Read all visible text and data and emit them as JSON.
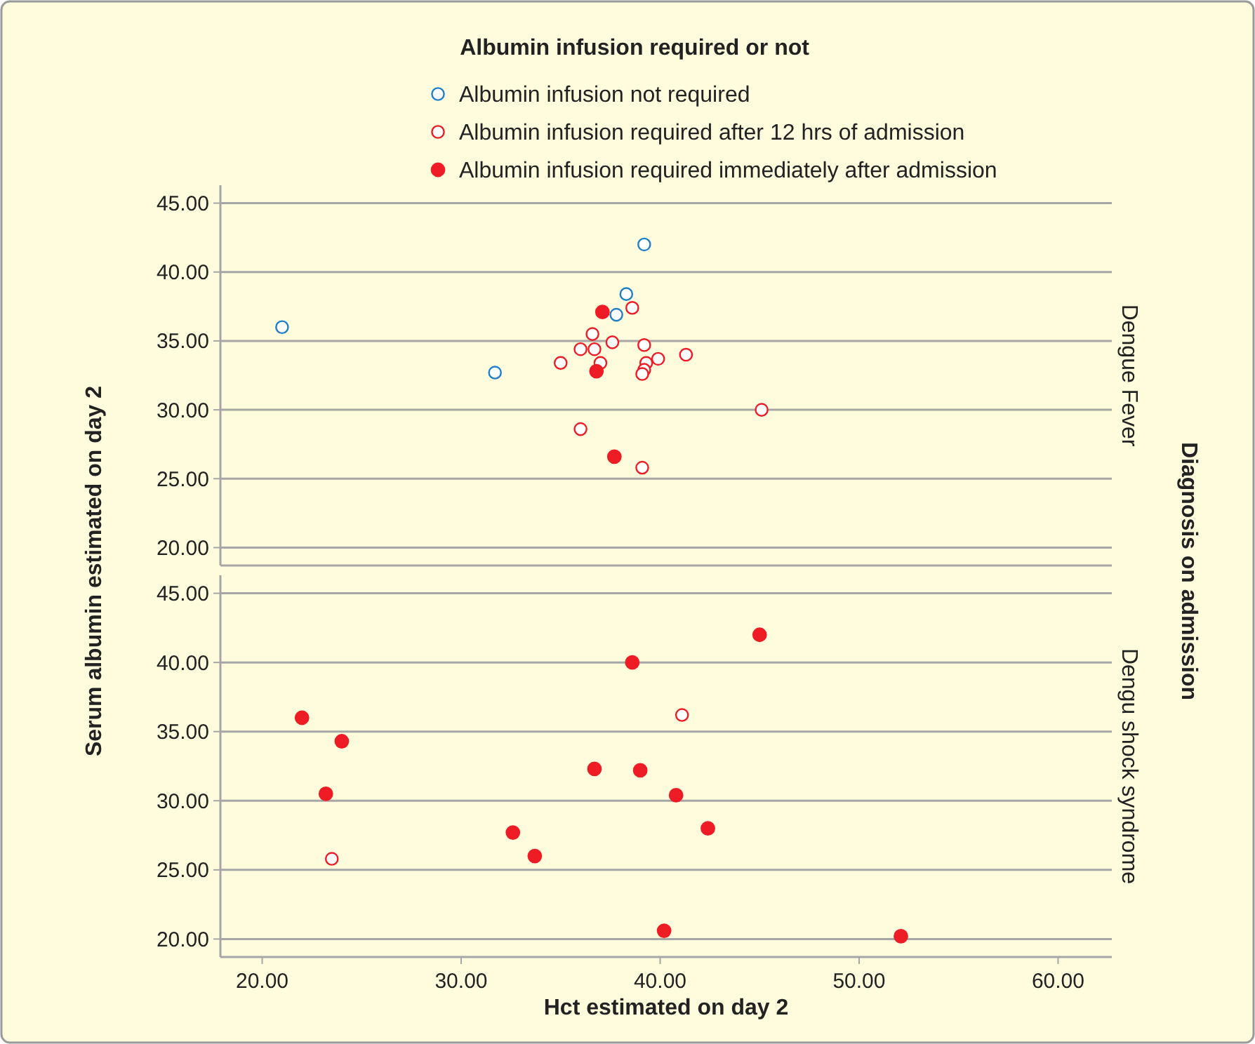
{
  "chart_data": [
    {
      "type": "scatter",
      "title": "Dengue Fever",
      "ylabel": "Serum albumin estimated on day 2",
      "legend_title": "Albumin infusion required or not",
      "legend": "top",
      "annotations": [
        "Diagnosis on admission"
      ],
      "marker": "circle",
      "grid": "y",
      "tick_labels": "y",
      "xlim": [
        17.9,
        62.7
      ],
      "ylim": [
        18.7,
        46.3
      ],
      "yticks": [
        {
          "value": 20,
          "label": "20.00"
        },
        {
          "value": 25,
          "label": "25.00"
        },
        {
          "value": 30,
          "label": "30.00"
        },
        {
          "value": 35,
          "label": "35.00"
        },
        {
          "value": 40,
          "label": "40.00"
        },
        {
          "value": 45,
          "label": "45.00"
        }
      ],
      "series": [
        {
          "name": "Albumin infusion not required",
          "color": "#1f7fc8",
          "x": [
            39.2,
            21.0,
            31.7,
            38.3,
            37.8
          ],
          "values": [
            42.0,
            36.0,
            32.7,
            38.4,
            36.9
          ]
        },
        {
          "name": "Albumin infusion required after 12 hrs of admission",
          "color": "#ee1c25",
          "x": [
            38.6,
            36.6,
            37.6,
            36.0,
            36.7,
            39.2,
            35.0,
            37.0,
            39.3,
            39.9,
            41.3,
            39.2,
            39.1,
            45.1,
            36.0,
            39.1
          ],
          "values": [
            37.4,
            35.5,
            34.9,
            34.4,
            34.4,
            34.7,
            33.4,
            33.4,
            33.4,
            33.7,
            34.0,
            32.9,
            32.6,
            30.0,
            28.6,
            25.8
          ]
        },
        {
          "name": "Albumin infusion required immediately after admission",
          "color": "#ee1c25",
          "x": [
            37.1,
            36.8,
            37.7
          ],
          "values": [
            37.1,
            32.8,
            26.6
          ]
        }
      ]
    },
    {
      "type": "scatter",
      "title": "Dengu shock syndrome",
      "xlabel": "Hct estimated on day 2",
      "marker": "circle",
      "grid": "y",
      "xlim": [
        17.9,
        62.7
      ],
      "ylim": [
        18.7,
        46.3
      ],
      "xticks": [
        {
          "value": 20,
          "label": "20.00"
        },
        {
          "value": 30,
          "label": "30.00"
        },
        {
          "value": 40,
          "label": "40.00"
        },
        {
          "value": 50,
          "label": "50.00"
        },
        {
          "value": 60,
          "label": "60.00"
        }
      ],
      "yticks": [
        {
          "value": 20,
          "label": "20.00"
        },
        {
          "value": 25,
          "label": "25.00"
        },
        {
          "value": 30,
          "label": "30.00"
        },
        {
          "value": 35,
          "label": "35.00"
        },
        {
          "value": 40,
          "label": "40.00"
        },
        {
          "value": 45,
          "label": "45.00"
        }
      ],
      "series": [
        {
          "color": "#ee1c25",
          "x": [
            41.1,
            23.5
          ],
          "values": [
            36.2,
            25.8
          ]
        },
        {
          "color": "#ee1c25",
          "x": [
            45.0,
            38.6,
            22.0,
            24.0,
            36.7,
            39.0,
            23.2,
            40.8,
            42.4,
            32.6,
            33.7,
            40.2,
            52.1
          ],
          "values": [
            42.0,
            40.0,
            36.0,
            34.3,
            32.3,
            32.2,
            30.5,
            30.4,
            28.0,
            27.7,
            26.0,
            20.6,
            20.2
          ]
        }
      ]
    }
  ]
}
